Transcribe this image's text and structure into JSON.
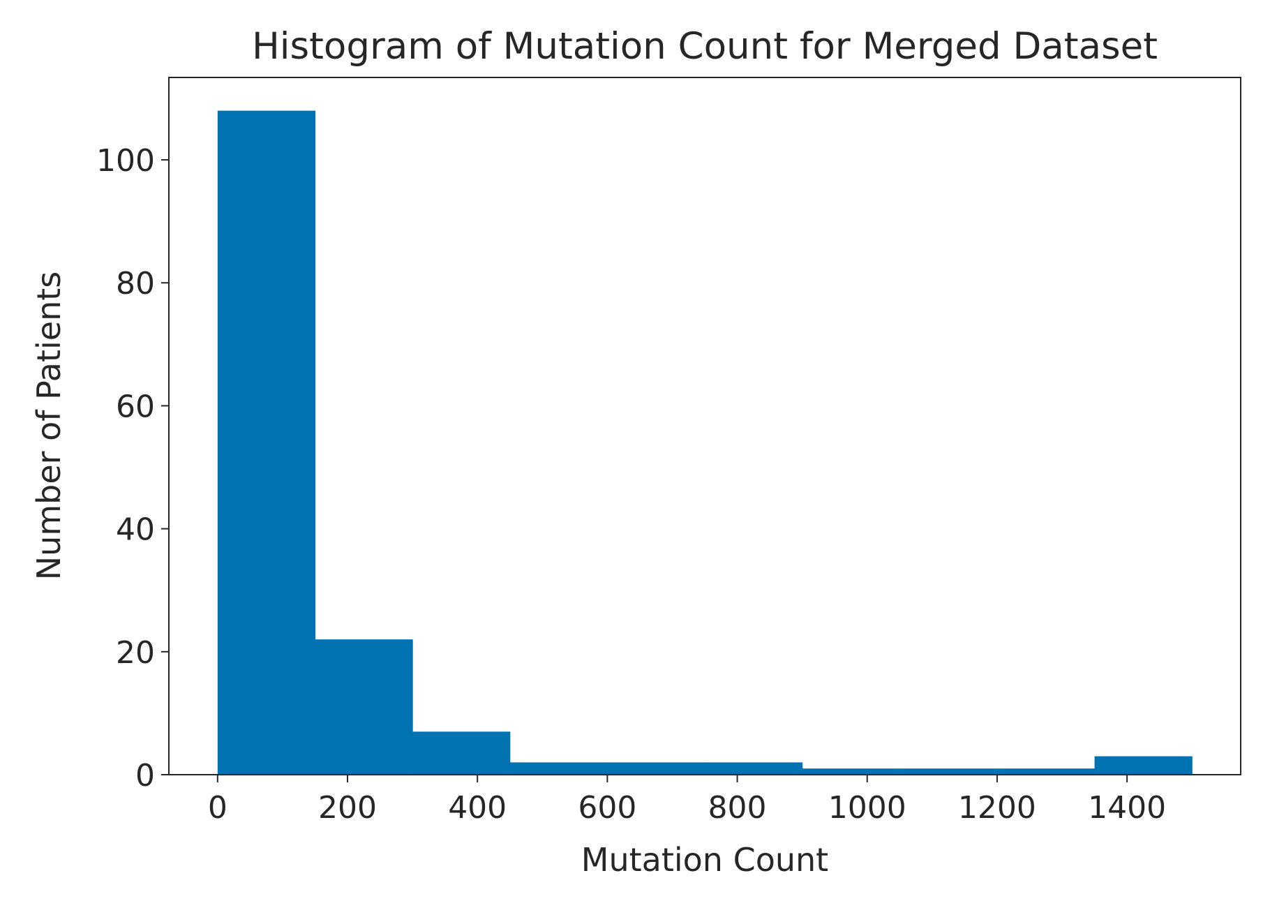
{
  "chart_data": {
    "type": "bar",
    "title": "Histogram of Mutation Count for Merged Dataset",
    "xlabel": "Mutation Count",
    "ylabel": "Number of Patients",
    "bin_edges": [
      0,
      150,
      300,
      450,
      600,
      750,
      900,
      1050,
      1200,
      1350,
      1500
    ],
    "values": [
      108,
      22,
      7,
      2,
      2,
      2,
      1,
      1,
      1,
      3
    ],
    "xlim": [
      -75,
      1575
    ],
    "ylim": [
      0,
      113.4
    ],
    "xticks": [
      0,
      200,
      400,
      600,
      800,
      1000,
      1200,
      1400
    ],
    "xtick_labels": [
      "0",
      "200",
      "400",
      "600",
      "800",
      "1000",
      "1200",
      "1400"
    ],
    "yticks": [
      0,
      20,
      40,
      60,
      80,
      100
    ],
    "ytick_labels": [
      "0",
      "20",
      "40",
      "60",
      "80",
      "100"
    ],
    "bar_color": "#0173b2",
    "grid": false,
    "legend": false
  }
}
